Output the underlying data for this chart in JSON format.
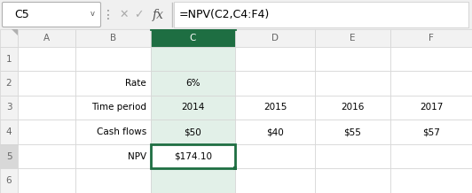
{
  "fig_width": 5.32,
  "fig_height": 2.18,
  "dpi": 100,
  "bg_color": "#f0f0f0",
  "formula_bar": {
    "cell_ref": "C5",
    "formula": "=NPV(C2,C4:F4)"
  },
  "header_bg": "#f2f2f2",
  "header_text_color": "#666666",
  "col_headers": [
    "",
    "A",
    "B",
    "C",
    "D",
    "E",
    "F"
  ],
  "row_headers": [
    "",
    "1",
    "2",
    "3",
    "4",
    "5",
    "6"
  ],
  "grid_color": "#d4d4d4",
  "selected_col_header_color": "#1e6e42",
  "selected_col_light": "#e2f0e8",
  "selected_cell_border_color": "#1e6e42",
  "cell_data": {
    "B2": {
      "text": "Rate",
      "align": "right"
    },
    "C2": {
      "text": "6%",
      "align": "center"
    },
    "B3": {
      "text": "Time period",
      "align": "right"
    },
    "C3": {
      "text": "2014",
      "align": "center"
    },
    "D3": {
      "text": "2015",
      "align": "center"
    },
    "E3": {
      "text": "2016",
      "align": "center"
    },
    "F3": {
      "text": "2017",
      "align": "center"
    },
    "B4": {
      "text": "Cash flows",
      "align": "right"
    },
    "C4": {
      "text": "$50",
      "align": "center"
    },
    "D4": {
      "text": "$40",
      "align": "center"
    },
    "E4": {
      "text": "$55",
      "align": "center"
    },
    "F4": {
      "text": "$57",
      "align": "center"
    },
    "B5": {
      "text": "NPV",
      "align": "right"
    },
    "C5": {
      "text": "$174.10",
      "align": "center",
      "selected": true
    }
  },
  "cell_font_size": 7.5,
  "header_font_size": 7.5
}
